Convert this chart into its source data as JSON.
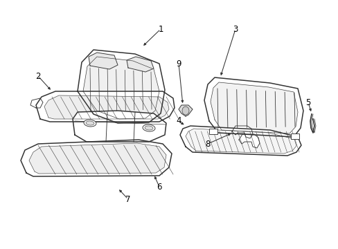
{
  "bg_color": "#ffffff",
  "line_color": "#333333",
  "lw_main": 1.1,
  "lw_thin": 0.65,
  "figsize": [
    4.89,
    3.6
  ],
  "dpi": 100
}
